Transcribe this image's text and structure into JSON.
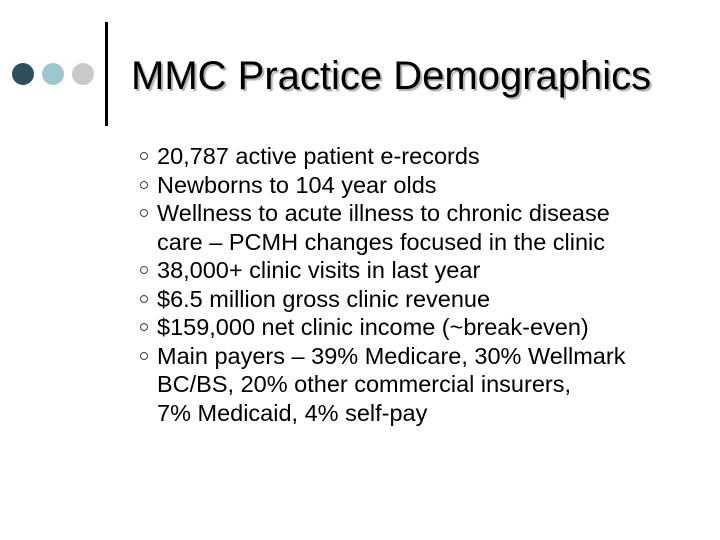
{
  "slide": {
    "title": "MMC Practice Demographics",
    "bullets": [
      {
        "lines": [
          "20,787 active patient e-records"
        ]
      },
      {
        "lines": [
          "Newborns to 104 year olds"
        ]
      },
      {
        "lines": [
          "Wellness to acute illness to chronic disease",
          "care – PCMH changes focused in the clinic"
        ]
      },
      {
        "lines": [
          "38,000+ clinic visits in last year"
        ]
      },
      {
        "lines": [
          "$6.5 million gross clinic revenue"
        ]
      },
      {
        "lines": [
          "$159,000 net clinic income (~break-even)"
        ]
      },
      {
        "lines": [
          "Main payers – 39% Medicare, 30% Wellmark",
          "BC/BS, 20% other commercial insurers,",
          "7% Medicaid, 4% self-pay"
        ]
      }
    ]
  },
  "colors": {
    "dot_dark": "#2e4f5e",
    "dot_teal": "#9cc7cf",
    "dot_gray": "#c9c9c9",
    "text": "#000000"
  },
  "icons": {
    "bullet_marker": "hollow-circle-bullet-icon",
    "decoration": "three-dots-decoration"
  }
}
